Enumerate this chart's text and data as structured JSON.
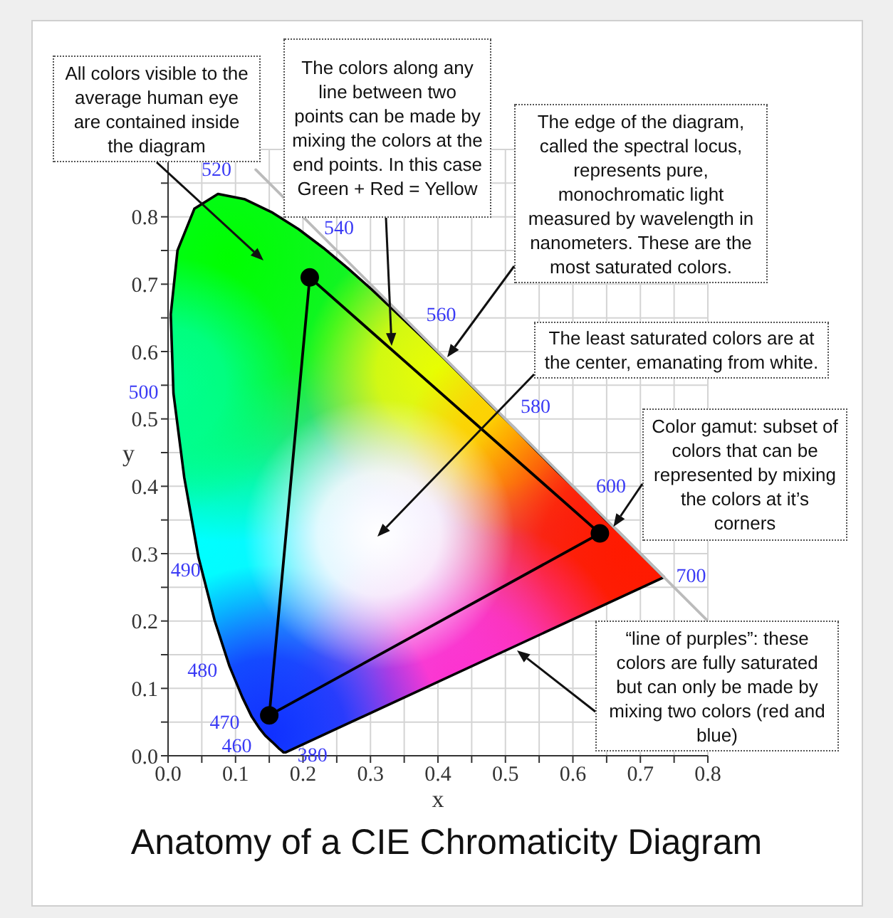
{
  "chart_data": {
    "type": "line",
    "title": "Anatomy of a CIE Chromaticity Diagram",
    "xlabel": "x",
    "ylabel": "y",
    "xlim": [
      0,
      0.8
    ],
    "ylim": [
      0,
      0.9
    ],
    "xticks": [
      {
        "value": 0,
        "label": "0.0"
      },
      {
        "value": 0.05,
        "label": null
      },
      0.1,
      {
        "value": 0.15,
        "label": null
      },
      0.2,
      {
        "value": 0.25,
        "label": null
      },
      0.3,
      {
        "value": 0.35,
        "label": null
      },
      0.4,
      {
        "value": 0.45,
        "label": null
      },
      0.5,
      {
        "value": 0.55,
        "label": null
      },
      0.6,
      {
        "value": 0.65,
        "label": null
      },
      0.7,
      {
        "value": 0.75,
        "label": null
      },
      0.8
    ],
    "yticks": [
      {
        "value": 0,
        "label": "0.0"
      },
      {
        "value": 0.05,
        "label": null
      },
      0.1,
      {
        "value": 0.15,
        "label": null
      },
      0.2,
      {
        "value": 0.25,
        "label": null
      },
      0.3,
      {
        "value": 0.35,
        "label": null
      },
      0.4,
      {
        "value": 0.45,
        "label": null
      },
      0.5,
      {
        "value": 0.55,
        "label": null
      },
      0.6,
      {
        "value": 0.65,
        "label": null
      },
      0.7,
      {
        "value": 0.75,
        "label": null
      },
      0.8,
      {
        "value": 0.85,
        "label": null
      },
      {
        "value": 0.9,
        "label": null
      }
    ],
    "grid": true,
    "series": [
      {
        "color": "#bbbbbb",
        "marker": "none",
        "x": [
          0.13,
          0.8
        ],
        "values": [
          0.87,
          0.2
        ]
      },
      {
        "color": "#000000",
        "marker": "none",
        "x": [
          0.15,
          0.21,
          0.64
        ],
        "values": [
          0.06,
          0.71,
          0.33
        ]
      },
      {
        "color": "#000000",
        "marker": "none",
        "x": [
          0.15,
          0.64
        ],
        "values": [
          0.06,
          0.33
        ]
      },
      {
        "type": "scatter",
        "color": "#000000",
        "marker": "circle",
        "x": [
          0.21,
          0.64,
          0.15
        ],
        "values": [
          0.71,
          0.33,
          0.06
        ]
      }
    ],
    "annotations": [
      "All colors visible to the average human eye are contained inside the diagram",
      "The colors along any line between two points can be made by mixing the colors at the end points. In this case Green + Red = Yellow",
      "The edge of the diagram, called the spectral locus, represents pure, monochromatic light measured by wavelength in nanometers. These are the most saturated colors.",
      "The least saturated colors are at the center, emanating from white.",
      {
        "text": "Color gamut: subset of colors that can be represented by mixing the colors at it’s corners",
        "x": 0.66,
        "y": 0.34
      },
      "“line of purples”: these colors are fully saturated but can only be made by mixing two colors (red and blue)",
      "520",
      "540",
      "560",
      "580",
      "600",
      "700",
      "500",
      "490",
      "480",
      "470",
      "460",
      "380"
    ]
  }
}
